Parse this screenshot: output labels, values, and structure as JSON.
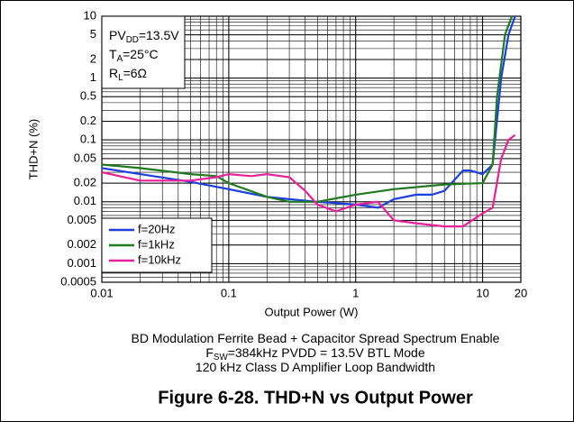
{
  "chart_data": {
    "type": "line",
    "title": "Figure 6-28. THD+N vs Output Power",
    "xlabel": "Output Power (W)",
    "ylabel": "THD+N (%)",
    "xscale": "log",
    "yscale": "log",
    "grid": true,
    "minor_grid": true,
    "legend": "lower left",
    "xlim": [
      0.01,
      20
    ],
    "xticks": [
      0.01,
      0.1,
      1,
      10,
      20
    ],
    "ylim": [
      0.0005,
      10
    ],
    "yticks": [
      10,
      5,
      2,
      1,
      0.5,
      0.2,
      0.1,
      0.05,
      0.02,
      0.01,
      0.005,
      0.002,
      0.001,
      0.0005
    ],
    "annotations": [
      {
        "parts": [
          {
            "text": "PV"
          },
          {
            "text": "DD",
            "sub": true
          },
          {
            "text": "=13.5V"
          }
        ]
      },
      {
        "parts": [
          {
            "text": "T"
          },
          {
            "text": "A",
            "sub": true
          },
          {
            "text": "=25°C"
          }
        ]
      },
      {
        "parts": [
          {
            "text": "R"
          },
          {
            "text": "L",
            "sub": true
          },
          {
            "text": "=6Ω"
          }
        ]
      }
    ],
    "notes": [
      {
        "parts": [
          {
            "text": "BD Modulation   Ferrite Bead + Capacitor   Spread Spectrum Enable"
          }
        ]
      },
      {
        "parts": [
          {
            "text": "F"
          },
          {
            "text": "SW",
            "sub": true
          },
          {
            "text": "=384kHz     PVDD = 13.5V      BTL Mode"
          }
        ]
      },
      {
        "parts": [
          {
            "text": "120 kHz Class D Amplifier Loop Bandwidth"
          }
        ]
      }
    ],
    "series": [
      {
        "name": "f=20Hz",
        "color": "#1a3ee0",
        "x": [
          0.01,
          0.02,
          0.05,
          0.1,
          0.2,
          0.3,
          0.5,
          0.7,
          1,
          1.5,
          2,
          3,
          4,
          5,
          7,
          8,
          10,
          12,
          14,
          16,
          18
        ],
        "values": [
          0.035,
          0.028,
          0.021,
          0.016,
          0.012,
          0.011,
          0.01,
          0.0095,
          0.009,
          0.008,
          0.011,
          0.013,
          0.013,
          0.015,
          0.032,
          0.032,
          0.028,
          0.04,
          1,
          5,
          10
        ]
      },
      {
        "name": "f=1kHz",
        "color": "#1f7a1f",
        "x": [
          0.01,
          0.02,
          0.05,
          0.08,
          0.1,
          0.2,
          0.3,
          0.5,
          1,
          2,
          5,
          10,
          12,
          13,
          15,
          17
        ],
        "values": [
          0.04,
          0.035,
          0.028,
          0.026,
          0.02,
          0.012,
          0.01,
          0.01,
          0.013,
          0.016,
          0.019,
          0.02,
          0.04,
          0.5,
          5,
          10
        ]
      },
      {
        "name": "f=10kHz",
        "color": "#e8209a",
        "x": [
          0.01,
          0.02,
          0.05,
          0.08,
          0.1,
          0.15,
          0.2,
          0.3,
          0.4,
          0.5,
          0.7,
          1,
          1.5,
          2,
          3,
          5,
          7,
          10,
          12,
          14,
          16,
          18
        ],
        "values": [
          0.03,
          0.022,
          0.022,
          0.025,
          0.028,
          0.026,
          0.028,
          0.025,
          0.015,
          0.009,
          0.007,
          0.009,
          0.01,
          0.005,
          0.0045,
          0.004,
          0.004,
          0.0065,
          0.008,
          0.05,
          0.1,
          0.12
        ]
      }
    ]
  }
}
